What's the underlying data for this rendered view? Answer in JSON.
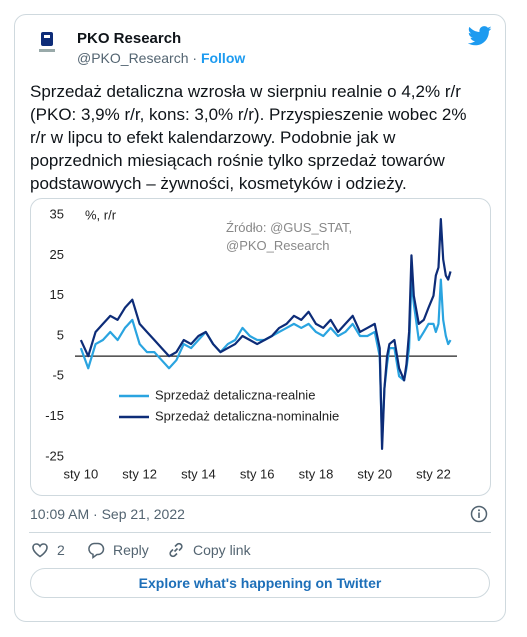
{
  "header": {
    "name": "PKO Research",
    "handle": "@PKO_Research",
    "separator": "·",
    "follow": "Follow"
  },
  "body": {
    "lines": [
      "Sprzedaż detaliczna wzrosła w sierpniu realnie o 4,2% r/r",
      "(PKO: 3,9% r/r, kons: 3,0% r/r). Przyspieszenie wobec 2%",
      "r/r w lipcu to efekt kalendarzowy. Podobnie jak w",
      "poprzednich miesiącach rośnie tylko sprzedaż towarów",
      "podstawowych – żywności, kosmetyków i odzieży."
    ]
  },
  "chart_data": {
    "type": "line",
    "ylabel": "%, r/r",
    "annotation": [
      "Źródło: @GUS_STAT,",
      "@PKO_Research"
    ],
    "x": [
      2010,
      2010.25,
      2010.5,
      2010.75,
      2011,
      2011.25,
      2011.5,
      2011.75,
      2012,
      2012.25,
      2012.5,
      2012.75,
      2013,
      2013.25,
      2013.5,
      2013.75,
      2014,
      2014.25,
      2014.5,
      2014.75,
      2015,
      2015.25,
      2015.5,
      2015.75,
      2016,
      2016.25,
      2016.5,
      2016.75,
      2017,
      2017.25,
      2017.5,
      2017.75,
      2018,
      2018.25,
      2018.5,
      2018.75,
      2019,
      2019.25,
      2019.5,
      2019.75,
      2020,
      2020.17,
      2020.25,
      2020.33,
      2020.42,
      2020.5,
      2020.67,
      2020.83,
      2021,
      2021.08,
      2021.17,
      2021.25,
      2021.33,
      2021.5,
      2021.67,
      2021.83,
      2022,
      2022.08,
      2022.17,
      2022.25,
      2022.33,
      2022.42,
      2022.5,
      2022.58
    ],
    "series": [
      {
        "name": "Sprzedaż detaliczna-realnie",
        "color": "#2aa4e0",
        "values": [
          2,
          -3,
          3,
          4,
          6,
          4,
          7,
          9,
          3,
          1,
          1,
          -1,
          -3,
          -1,
          3,
          2,
          4,
          6,
          3,
          1,
          3,
          4,
          7,
          5,
          4,
          4,
          5,
          6,
          7,
          8,
          7,
          8,
          6,
          5,
          7,
          5,
          6,
          8,
          5,
          5,
          6,
          0,
          -21,
          -8,
          -2,
          2,
          2,
          -5,
          -6,
          -3,
          2,
          19,
          13,
          4,
          6,
          8,
          8,
          6,
          8,
          19,
          9,
          5,
          3,
          4
        ]
      },
      {
        "name": "Sprzedaż detaliczna-nominalnie",
        "color": "#0d2c78",
        "values": [
          4,
          0,
          6,
          8,
          10,
          9,
          12,
          14,
          8,
          6,
          4,
          2,
          0,
          1,
          4,
          3,
          5,
          6,
          3,
          1,
          2,
          3,
          5,
          4,
          3,
          4,
          5,
          7,
          8,
          10,
          9,
          11,
          8,
          7,
          9,
          6,
          8,
          10,
          6,
          7,
          8,
          2,
          -23,
          -8,
          0,
          3,
          4,
          -3,
          -6,
          -2,
          6,
          25,
          15,
          8,
          9,
          12,
          15,
          20,
          22,
          34,
          24,
          20,
          19,
          21
        ]
      }
    ],
    "xlim": [
      2009.8,
      2022.8
    ],
    "xticks": [
      {
        "value": 2010,
        "label": "sty 10"
      },
      {
        "value": 2012,
        "label": "sty 12"
      },
      {
        "value": 2014,
        "label": "sty 14"
      },
      {
        "value": 2016,
        "label": "sty 16"
      },
      {
        "value": 2018,
        "label": "sty 18"
      },
      {
        "value": 2020,
        "label": "sty 20"
      },
      {
        "value": 2022,
        "label": "sty 22"
      }
    ],
    "ylim": [
      -26.5,
      36
    ],
    "yticks": [
      35,
      25,
      15,
      5,
      -5,
      -15,
      -25
    ],
    "grid": false
  },
  "footer": {
    "timestamp": "10:09 AM · Sep 21, 2022",
    "likes": "2",
    "reply": "Reply",
    "copy": "Copy link",
    "explore": "Explore what's happening on Twitter"
  }
}
